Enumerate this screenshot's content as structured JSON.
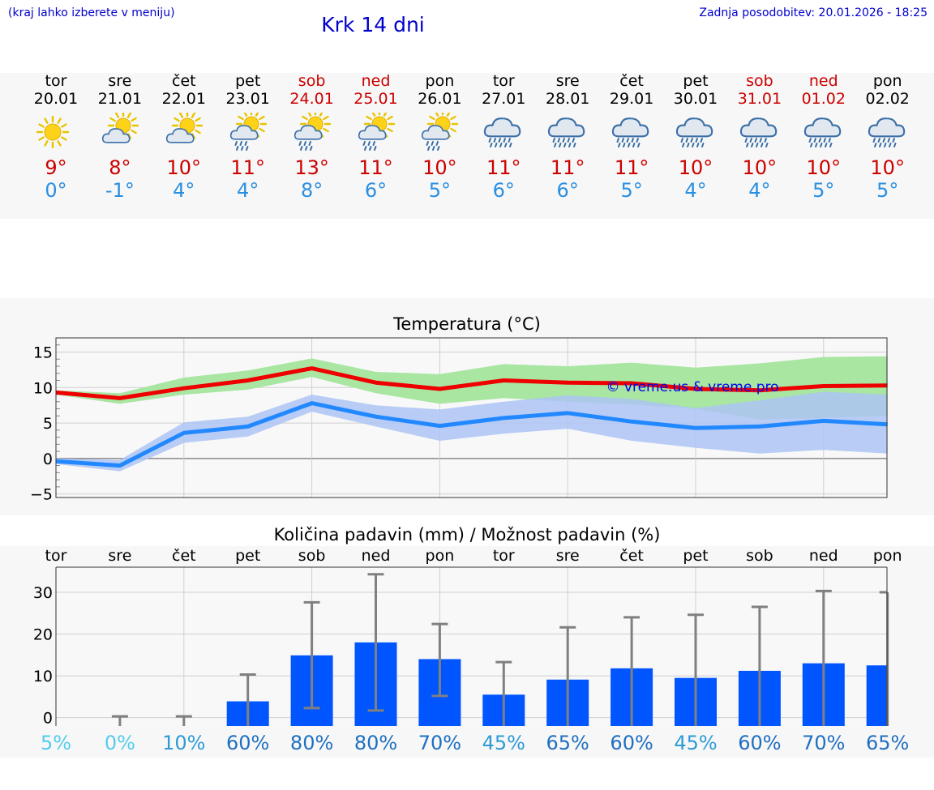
{
  "header": {
    "note": "(kraj lahko izberete v meniju)",
    "title": "Krk 14 dni",
    "updated": "Zadnja posodobitev: 20.01.2026 - 18:25"
  },
  "colors": {
    "max": "#ee0000",
    "min": "#2288ff",
    "max_band": "#a8e6a1",
    "min_band": "#adc4f4",
    "bar": "#0055ff",
    "weekend": "#cc0000"
  },
  "days": [
    {
      "name": "tor",
      "date": "20.01",
      "weekend": false,
      "icon": "sun-icon",
      "max": "9°",
      "min": "0°"
    },
    {
      "name": "sre",
      "date": "21.01",
      "weekend": false,
      "icon": "sun-cloud-icon",
      "max": "8°",
      "min": "-1°"
    },
    {
      "name": "čet",
      "date": "22.01",
      "weekend": false,
      "icon": "sun-cloud-icon",
      "max": "10°",
      "min": "4°"
    },
    {
      "name": "pet",
      "date": "23.01",
      "weekend": false,
      "icon": "sun-cloud-rain-icon",
      "max": "11°",
      "min": "4°"
    },
    {
      "name": "sob",
      "date": "24.01",
      "weekend": true,
      "icon": "sun-cloud-rain-icon",
      "max": "13°",
      "min": "8°"
    },
    {
      "name": "ned",
      "date": "25.01",
      "weekend": true,
      "icon": "sun-cloud-rain-icon",
      "max": "11°",
      "min": "6°"
    },
    {
      "name": "pon",
      "date": "26.01",
      "weekend": false,
      "icon": "sun-cloud-rain-icon",
      "max": "10°",
      "min": "5°"
    },
    {
      "name": "tor",
      "date": "27.01",
      "weekend": false,
      "icon": "cloud-rain-icon",
      "max": "11°",
      "min": "6°"
    },
    {
      "name": "sre",
      "date": "28.01",
      "weekend": false,
      "icon": "cloud-rain-icon",
      "max": "11°",
      "min": "6°"
    },
    {
      "name": "čet",
      "date": "29.01",
      "weekend": false,
      "icon": "cloud-rain-icon",
      "max": "11°",
      "min": "5°"
    },
    {
      "name": "pet",
      "date": "30.01",
      "weekend": false,
      "icon": "cloud-rain-icon",
      "max": "10°",
      "min": "4°"
    },
    {
      "name": "sob",
      "date": "31.01",
      "weekend": true,
      "icon": "cloud-rain-icon",
      "max": "10°",
      "min": "4°"
    },
    {
      "name": "ned",
      "date": "01.02",
      "weekend": true,
      "icon": "cloud-rain-icon",
      "max": "10°",
      "min": "5°"
    },
    {
      "name": "pon",
      "date": "02.02",
      "weekend": false,
      "icon": "cloud-rain-icon",
      "max": "10°",
      "min": "5°"
    }
  ],
  "chart_data": [
    {
      "type": "line",
      "title": "Temperatura (°C)",
      "watermark": "© vreme.us & vreme.pro",
      "x": [
        0,
        1,
        2,
        3,
        4,
        5,
        6,
        7,
        8,
        9,
        10,
        11,
        12,
        13
      ],
      "ylim": [
        -5.5,
        17
      ],
      "yticks": [
        -5,
        0,
        5,
        10,
        15
      ],
      "ytick_labels": [
        "−5",
        "0",
        "5",
        "10",
        "15"
      ],
      "grid": true,
      "series": [
        {
          "name": "max",
          "values": [
            9.3,
            8.5,
            9.9,
            11.0,
            12.7,
            10.7,
            9.8,
            11.0,
            10.7,
            10.6,
            9.8,
            9.6,
            10.2,
            10.3
          ],
          "band_low": [
            9.0,
            7.7,
            9.0,
            9.7,
            11.5,
            9.2,
            7.7,
            8.5,
            8.0,
            7.6,
            7.0,
            5.5,
            5.7,
            6.0
          ],
          "band_high": [
            9.6,
            9.2,
            11.4,
            12.4,
            14.1,
            12.2,
            11.9,
            13.3,
            13.0,
            13.5,
            12.8,
            13.4,
            14.3,
            14.4
          ]
        },
        {
          "name": "min",
          "values": [
            -0.4,
            -1.0,
            3.6,
            4.5,
            7.8,
            5.9,
            4.6,
            5.7,
            6.4,
            5.2,
            4.3,
            4.5,
            5.3,
            4.8
          ],
          "band_low": [
            -0.8,
            -1.8,
            2.2,
            3.1,
            6.6,
            4.5,
            2.5,
            3.5,
            4.2,
            2.5,
            1.5,
            0.7,
            1.2,
            0.7
          ],
          "band_high": [
            0.0,
            -0.2,
            5.1,
            5.9,
            9.0,
            7.5,
            6.9,
            8.0,
            8.9,
            8.4,
            7.1,
            8.2,
            9.4,
            9.0
          ]
        }
      ]
    },
    {
      "type": "bar",
      "title": "Količina padavin (mm) / Možnost padavin (%)",
      "categories": [
        "tor",
        "sre",
        "čet",
        "pet",
        "sob",
        "ned",
        "pon",
        "tor",
        "sre",
        "čet",
        "pet",
        "sob",
        "ned",
        "pon"
      ],
      "values": [
        0.0,
        0.0,
        0.0,
        3.9,
        14.9,
        18.0,
        14.0,
        5.5,
        9.1,
        11.8,
        9.5,
        11.2,
        13.0,
        12.5
      ],
      "err_low": [
        0.0,
        0.0,
        0.0,
        0.0,
        2.3,
        1.7,
        5.2,
        0.0,
        0.0,
        0.0,
        0.0,
        0.0,
        0.0,
        0.0
      ],
      "err_high": [
        0.0,
        0.3,
        0.3,
        10.3,
        27.6,
        34.3,
        22.4,
        13.3,
        21.6,
        24.0,
        24.6,
        26.5,
        30.3,
        30.0
      ],
      "ylim": [
        -2,
        36
      ],
      "yticks": [
        0,
        10,
        20,
        30
      ],
      "chance": [
        "5%",
        "0%",
        "10%",
        "60%",
        "80%",
        "80%",
        "70%",
        "45%",
        "65%",
        "60%",
        "45%",
        "60%",
        "70%",
        "65%"
      ],
      "chance_colors": [
        "#55ccee",
        "#55ccee",
        "#2e9ad6",
        "#1f6fc0",
        "#1f6fc0",
        "#1f6fc0",
        "#1f6fc0",
        "#2e9ad6",
        "#1f6fc0",
        "#1f6fc0",
        "#2e9ad6",
        "#1f6fc0",
        "#1f6fc0",
        "#1f6fc0"
      ]
    }
  ]
}
